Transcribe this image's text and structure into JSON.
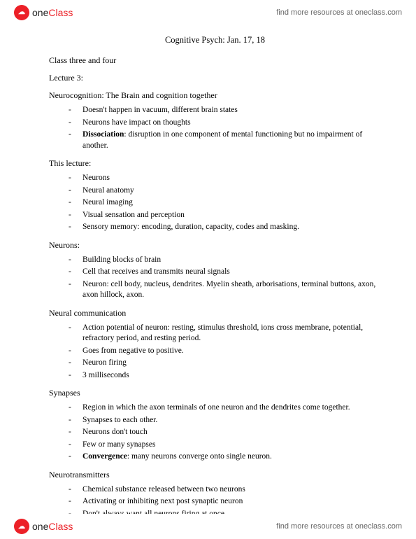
{
  "brand": {
    "logo_glyph": "☁",
    "name_dark": "one",
    "name_red": "Class",
    "resources_text": "find more resources at oneclass.com"
  },
  "doc": {
    "title": "Cognitive Psych: Jan. 17, 18",
    "line_class": "Class three and four",
    "line_lecture": "Lecture 3:",
    "line_neuro": "Neurocognition: The Brain and cognition together",
    "neuro_items": {
      "i0": "Doesn't happen in vacuum, different brain states",
      "i1": "Neurons have impact on thoughts",
      "i2_bold": "Dissociation",
      "i2_rest": ": disruption in one component of mental functioning but no impairment of another."
    },
    "line_thislec": "This lecture:",
    "thislec_items": {
      "i0": "Neurons",
      "i1": "Neural anatomy",
      "i2": "Neural imaging",
      "i3": "Visual sensation and perception",
      "i4": "Sensory memory: encoding, duration, capacity, codes and masking."
    },
    "line_neurons": "Neurons:",
    "neurons_items": {
      "i0": "Building blocks of brain",
      "i1": "Cell that receives and transmits neural signals",
      "i2": "Neuron: cell body, nucleus, dendrites. Myelin sheath, arborisations, terminal buttons, axon, axon hillock, axon."
    },
    "line_comm": "Neural communication",
    "comm_items": {
      "i0": "Action potential of neuron: resting, stimulus threshold, ions cross membrane, potential, refractory period, and resting period.",
      "i1": "Goes from negative to positive.",
      "i2": "Neuron firing",
      "i3": "3 milliseconds"
    },
    "line_syn": "Synapses",
    "syn_items": {
      "i0": "Region in which the axon terminals of one neuron and the dendrites come together.",
      "i1": "Synapses to each other.",
      "i2": "Neurons don't touch",
      "i3": "Few or many synapses",
      "i4_bold": "Convergence",
      "i4_rest": ": many neurons converge onto single neuron."
    },
    "line_nt": "Neurotransmitters",
    "nt_items": {
      "i0": "Chemical substance released between two neurons",
      "i1": "Activating or inhibiting next post synaptic neuron",
      "i2": "Don't always want all neurons firing at once"
    }
  }
}
